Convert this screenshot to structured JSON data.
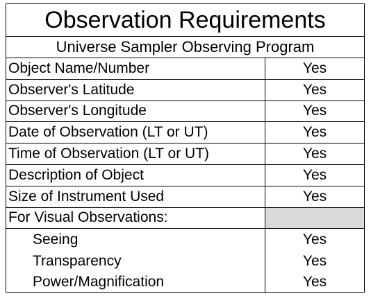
{
  "header": {
    "title": "Observation Requirements",
    "subtitle": "Universe Sampler Observing Program"
  },
  "table": {
    "rows": [
      {
        "label": "Object Name/Number",
        "value": "Yes"
      },
      {
        "label": "Observer's Latitude",
        "value": "Yes"
      },
      {
        "label": "Observer's Longitude",
        "value": "Yes"
      },
      {
        "label": "Date of Observation (LT or UT)",
        "value": "Yes"
      },
      {
        "label": "Time of Observation (LT or UT)",
        "value": "Yes"
      },
      {
        "label": "Description of Object",
        "value": "Yes"
      },
      {
        "label": "Size of Instrument Used",
        "value": "Yes"
      },
      {
        "label": "For Visual Observations:",
        "subrows": [
          {
            "label": "Seeing",
            "value": "Yes"
          },
          {
            "label": "Transparency",
            "value": "Yes"
          },
          {
            "label": "Power/Magnification",
            "value": "Yes"
          }
        ]
      }
    ]
  }
}
